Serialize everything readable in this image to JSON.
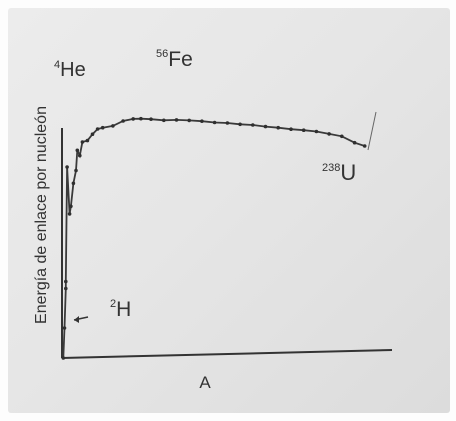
{
  "chart_data": {
    "type": "line",
    "xlabel": "A",
    "ylabel": "Energía de enlace por nucleón",
    "annotations": [
      {
        "sup": "4",
        "text": "He",
        "x": 4,
        "y": 7.07
      },
      {
        "sup": "56",
        "text": "Fe",
        "x": 56,
        "y": 8.79
      },
      {
        "sup": "238",
        "text": "U",
        "x": 238,
        "y": 7.57
      },
      {
        "sup": "2",
        "text": "H",
        "x": 2,
        "y": 1.11
      }
    ],
    "xlim": [
      0,
      250
    ],
    "ylim": [
      0,
      10
    ],
    "grid": false,
    "series": [
      {
        "x": [
          1,
          2,
          3,
          3,
          4,
          6,
          7,
          9,
          11,
          12,
          14,
          16,
          20,
          24,
          28,
          32,
          40,
          48,
          56,
          62,
          70,
          80,
          90,
          100,
          110,
          120,
          130,
          140,
          150,
          160,
          170,
          180,
          190,
          200,
          210,
          220,
          230,
          238
        ],
        "y": [
          0,
          1.11,
          2.57,
          2.83,
          7.07,
          5.33,
          5.61,
          6.46,
          6.93,
          7.68,
          7.48,
          7.98,
          8.03,
          8.26,
          8.45,
          8.49,
          8.55,
          8.72,
          8.79,
          8.79,
          8.76,
          8.71,
          8.71,
          8.68,
          8.64,
          8.58,
          8.55,
          8.49,
          8.45,
          8.38,
          8.33,
          8.26,
          8.21,
          8.15,
          8.05,
          7.95,
          7.7,
          7.57
        ]
      }
    ]
  }
}
